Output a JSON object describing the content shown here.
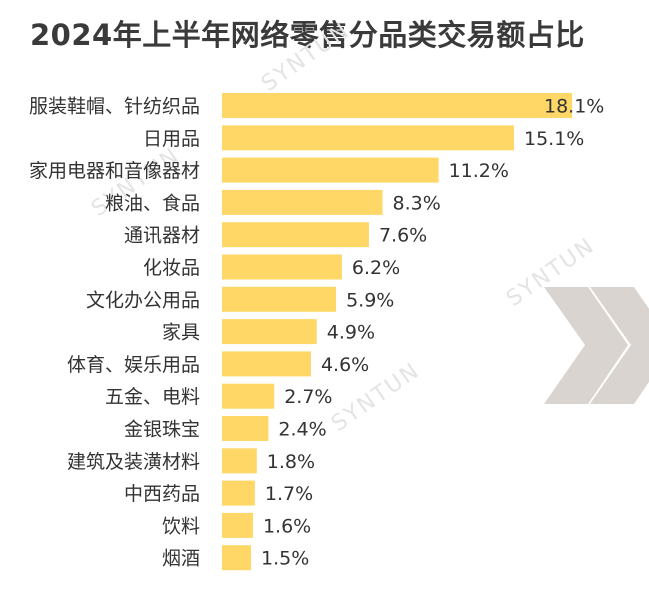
{
  "chart_data": {
    "type": "bar",
    "orientation": "horizontal",
    "title": "2024年上半年网络零售分品类交易额占比",
    "categories": [
      "服装鞋帽、针纺织品",
      "日用品",
      "家用电器和音像器材",
      "粮油、食品",
      "通讯器材",
      "化妆品",
      "文化办公用品",
      "家具",
      "体育、娱乐用品",
      "五金、电料",
      "金银珠宝",
      "建筑及装潢材料",
      "中西药品",
      "饮料",
      "烟酒"
    ],
    "values": [
      18.1,
      15.1,
      11.2,
      8.3,
      7.6,
      6.2,
      5.9,
      4.9,
      4.6,
      2.7,
      2.4,
      1.8,
      1.7,
      1.6,
      1.5
    ],
    "value_suffix": "%",
    "value_labels": [
      "18.1%",
      "15.1%",
      "11.2%",
      "8.3%",
      "7.6%",
      "6.2%",
      "5.9%",
      "4.9%",
      "4.6%",
      "2.7%",
      "2.4%",
      "1.8%",
      "1.7%",
      "1.6%",
      "1.5%"
    ],
    "bar_color": "#FFD766",
    "grid": false,
    "legend": "none"
  },
  "watermark": {
    "text": "SYNTUN",
    "color": "#e4e4e4"
  },
  "decoration": {
    "chevron_color": "#d9d4cf"
  }
}
